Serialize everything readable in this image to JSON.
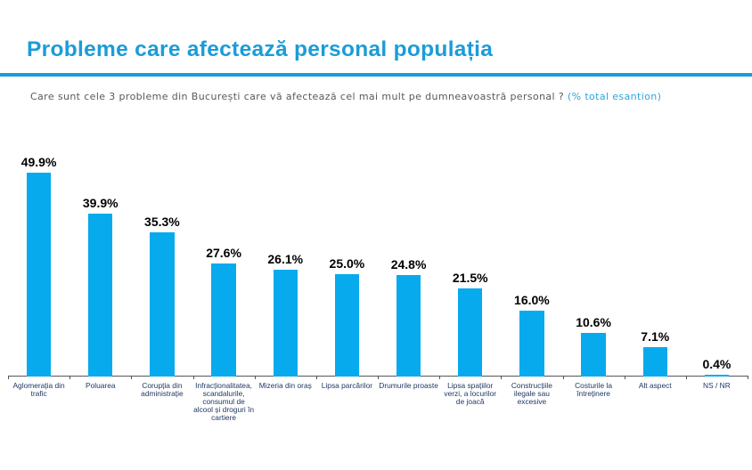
{
  "header": {
    "title": "Probleme care afectează personal populația"
  },
  "subtitle": {
    "question": "Care sunt cele 3 probleme din București care vă afectează cel mai mult pe dumneavoastră personal ?",
    "note": "(% total esantion)"
  },
  "colors": {
    "accent_blue": "#1b9cd8",
    "bar_fill": "#07aaec",
    "subtitle_gray": "#58595b",
    "note_cyan": "#2aa6dc",
    "category_navy": "#1f3864",
    "value_label_black": "#000000",
    "axis_gray": "#555555"
  },
  "chart_data": {
    "type": "bar",
    "title": "Probleme care afectează personal populația",
    "subtitle": "Care sunt cele 3 probleme din București care vă afectează cel mai mult pe dumneavoastră personal ? (% total esantion)",
    "xlabel": "",
    "ylabel": "",
    "unit": "%",
    "ylim": [
      0,
      55
    ],
    "grid": false,
    "legend": false,
    "bar_color": "#07aaec",
    "categories": [
      "Aglomerația din trafic",
      "Poluarea",
      "Corupția din administrație",
      "Infracționalitatea, scandalurile, consumul de alcool și droguri în cartiere",
      "Mizeria din oraș",
      "Lipsa parcărilor",
      "Drumurile proaste",
      "Lipsa spațiilor verzi, a locurilor de joacă",
      "Construcțiile ilegale sau excesive",
      "Costurile la întreținere",
      "Alt aspect",
      "NS / NR"
    ],
    "category_lines": [
      [
        "Aglomerația din",
        "trafic"
      ],
      [
        "Poluarea"
      ],
      [
        "Corupția din",
        "administrație"
      ],
      [
        "Infracționalitatea,",
        "scandalurile,",
        "consumul de",
        "alcool și droguri în",
        "cartiere"
      ],
      [
        "Mizeria din oraș"
      ],
      [
        "Lipsa parcărilor"
      ],
      [
        "Drumurile proaste"
      ],
      [
        "Lipsa spațiilor",
        "verzi, a locurilor",
        "de joacă"
      ],
      [
        "Construcțiile",
        "ilegale sau",
        "excesive"
      ],
      [
        "Costurile la",
        "întreținere"
      ],
      [
        "Alt aspect"
      ],
      [
        "NS / NR"
      ]
    ],
    "values": [
      49.9,
      39.9,
      35.3,
      27.6,
      26.1,
      25.0,
      24.8,
      21.5,
      16.0,
      10.6,
      7.1,
      0.4
    ],
    "value_labels": [
      "49.9%",
      "39.9%",
      "35.3%",
      "27.6%",
      "26.1%",
      "25.0%",
      "24.8%",
      "21.5%",
      "16.0%",
      "10.6%",
      "7.1%",
      "0.4%"
    ]
  }
}
